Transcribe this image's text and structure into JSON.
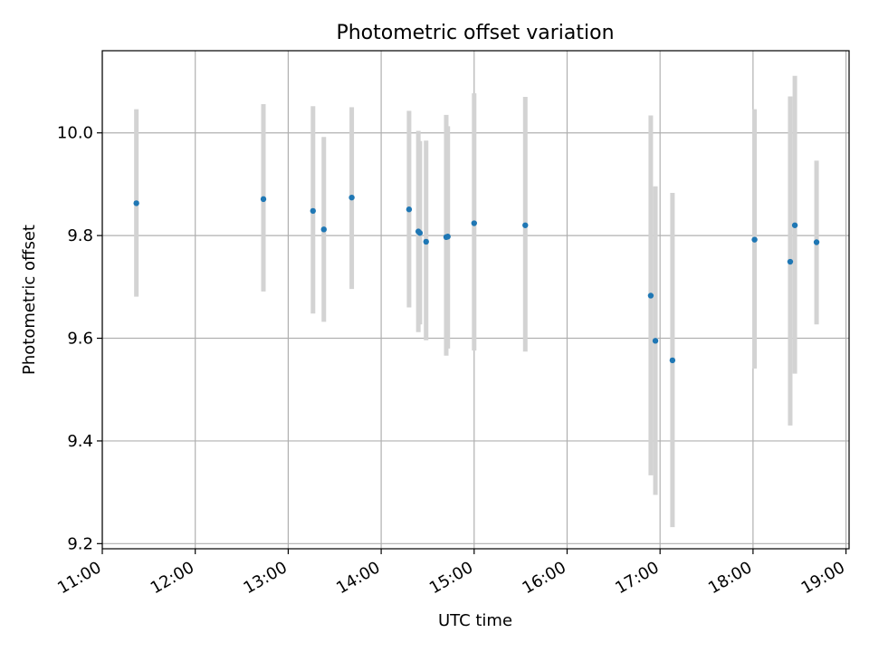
{
  "chart_data": {
    "type": "scatter",
    "title": "Photometric offset variation",
    "xlabel": "UTC time",
    "ylabel": "Photometric offset",
    "x_axis": "time",
    "xlim": [
      "11:00",
      "19:02"
    ],
    "ylim": [
      9.19,
      10.16
    ],
    "xticks": [
      "11:00",
      "12:00",
      "13:00",
      "14:00",
      "15:00",
      "16:00",
      "17:00",
      "18:00",
      "19:00"
    ],
    "yticks": [
      9.2,
      9.4,
      9.6,
      9.8,
      10.0
    ],
    "ytick_labels": [
      "9.2",
      "9.4",
      "9.6",
      "9.8",
      "10.0"
    ],
    "grid": true,
    "marker_color": "#1f77b4",
    "errorbar_color": "#d3d3d3",
    "points": [
      {
        "x": "11:22",
        "y": 9.863,
        "yerr_low": 9.681,
        "yerr_high": 10.046
      },
      {
        "x": "12:44",
        "y": 9.871,
        "yerr_low": 9.691,
        "yerr_high": 10.056
      },
      {
        "x": "13:16",
        "y": 9.848,
        "yerr_low": 9.648,
        "yerr_high": 10.052
      },
      {
        "x": "13:23",
        "y": 9.812,
        "yerr_low": 9.632,
        "yerr_high": 9.992
      },
      {
        "x": "13:41",
        "y": 9.874,
        "yerr_low": 9.696,
        "yerr_high": 10.05
      },
      {
        "x": "14:18",
        "y": 9.851,
        "yerr_low": 9.66,
        "yerr_high": 10.043
      },
      {
        "x": "14:24",
        "y": 9.808,
        "yerr_low": 9.612,
        "yerr_high": 10.004
      },
      {
        "x": "14:25",
        "y": 9.805,
        "yerr_low": 9.627,
        "yerr_high": 9.984
      },
      {
        "x": "14:29",
        "y": 9.788,
        "yerr_low": 9.596,
        "yerr_high": 9.985
      },
      {
        "x": "14:42",
        "y": 9.797,
        "yerr_low": 9.566,
        "yerr_high": 10.035
      },
      {
        "x": "14:43",
        "y": 9.798,
        "yerr_low": 9.58,
        "yerr_high": 10.013
      },
      {
        "x": "15:00",
        "y": 9.824,
        "yerr_low": 9.576,
        "yerr_high": 10.077
      },
      {
        "x": "15:33",
        "y": 9.82,
        "yerr_low": 9.574,
        "yerr_high": 10.07
      },
      {
        "x": "16:54",
        "y": 9.683,
        "yerr_low": 9.333,
        "yerr_high": 10.034
      },
      {
        "x": "16:57",
        "y": 9.595,
        "yerr_low": 9.295,
        "yerr_high": 9.896
      },
      {
        "x": "17:08",
        "y": 9.557,
        "yerr_low": 9.232,
        "yerr_high": 9.883
      },
      {
        "x": "18:01",
        "y": 9.792,
        "yerr_low": 9.541,
        "yerr_high": 10.046
      },
      {
        "x": "18:24",
        "y": 9.749,
        "yerr_low": 9.43,
        "yerr_high": 10.071
      },
      {
        "x": "18:27",
        "y": 9.82,
        "yerr_low": 9.531,
        "yerr_high": 10.111
      },
      {
        "x": "18:41",
        "y": 9.787,
        "yerr_low": 9.627,
        "yerr_high": 9.946
      }
    ]
  }
}
